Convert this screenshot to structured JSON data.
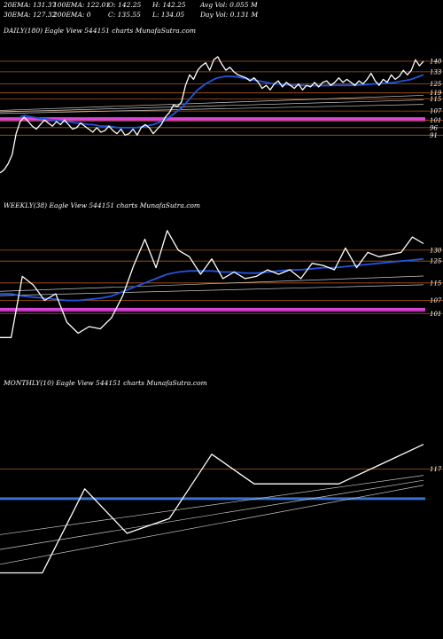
{
  "header": {
    "ema20": "20EMA: 131.37",
    "ema100": "100EMA: 122.01",
    "open": "O: 142.25",
    "high": "H: 142.25",
    "avgvol": "Avg Vol: 0.055 M",
    "ema30": "30EMA: 127.32",
    "ema200": "200EMA: 0",
    "close": "C: 135.55",
    "low": "L: 134.05",
    "dayvol": "Day Vol: 0.131 M"
  },
  "colors": {
    "background": "#000000",
    "price_line": "#ffffff",
    "ema_fast": "#2255dd",
    "level_line": "#b0581a",
    "magenta_band": "#dd44dd",
    "blue_band": "#3b70d0"
  },
  "chart_data": [
    {
      "type": "line",
      "title": "DAILY(180) Eagle   View  544151 charts MunafaSutra.com",
      "price_levels": [
        "140",
        "133",
        "125",
        "119",
        "115",
        "107",
        "101",
        "96",
        "91"
      ],
      "series": [
        {
          "values": [
            66,
            68,
            72,
            78,
            92,
            100,
            103,
            100,
            97,
            95,
            98,
            101,
            99,
            97,
            100,
            98,
            101,
            98,
            95,
            96,
            99,
            97,
            95,
            93,
            96,
            93,
            94,
            97,
            94,
            92,
            95,
            91,
            92,
            95,
            91,
            96,
            98,
            96,
            92,
            95,
            98,
            103,
            106,
            111,
            110,
            113,
            124,
            131,
            128,
            134,
            137,
            139,
            134,
            141,
            143,
            138,
            134,
            136,
            133,
            131,
            130,
            129,
            127,
            129,
            126,
            122,
            124,
            121,
            125,
            127,
            123,
            126,
            124,
            122,
            125,
            121,
            124,
            123,
            126,
            123,
            126,
            127,
            124,
            126,
            129,
            126,
            128,
            126,
            124,
            127,
            125,
            128,
            132,
            127,
            124,
            128,
            126,
            131,
            128,
            130,
            134,
            131,
            134,
            141,
            137,
            140
          ]
        },
        {
          "values": [
            null,
            null,
            null,
            null,
            null,
            103,
            104,
            103.5,
            103,
            102.5,
            102,
            102,
            101.5,
            101,
            101,
            100.5,
            100,
            100,
            99.5,
            99,
            99,
            98.5,
            98,
            98,
            97.5,
            97,
            97,
            97,
            96.5,
            96,
            96,
            96,
            96,
            96,
            96,
            96.5,
            97,
            97.5,
            98,
            99,
            100,
            101.5,
            103,
            105,
            107,
            109,
            112,
            115,
            118,
            121,
            123,
            125,
            126.5,
            128,
            129,
            129.5,
            130,
            130,
            129.8,
            129.5,
            129,
            128.5,
            128,
            127.5,
            127,
            126.5,
            126,
            125.5,
            125,
            125,
            124.5,
            124.5,
            124,
            124,
            124,
            124,
            123.8,
            123.8,
            123.8,
            123.8,
            123.8,
            123.8,
            124,
            124,
            124,
            124,
            124,
            124,
            124,
            124.2,
            124.4,
            124.6,
            124.8,
            125,
            125.2,
            125.4,
            125.6,
            125.8,
            126,
            126.5,
            127,
            127.5,
            128,
            129,
            130,
            131
          ]
        }
      ]
    },
    {
      "type": "line",
      "title": "WEEKLY(38) Eagle   View  544151 charts MunafaSutra.com",
      "price_levels": [
        "130",
        "125",
        "115",
        "107",
        "101"
      ],
      "series": [
        {
          "values": [
            90,
            90,
            118,
            114,
            107,
            110,
            97,
            92,
            95,
            94,
            99,
            109,
            123,
            135,
            122,
            139,
            130,
            127,
            119,
            126,
            117,
            120,
            117,
            118,
            121,
            119,
            121,
            117,
            124,
            123,
            121,
            131,
            122,
            129,
            127,
            128,
            129,
            136,
            133
          ]
        },
        {
          "values": [
            110,
            110,
            109,
            108.5,
            108,
            107.5,
            107,
            107,
            107.5,
            108,
            109,
            111,
            113,
            115,
            117,
            119,
            120,
            120.5,
            120.5,
            120.5,
            120,
            120,
            119.5,
            119.5,
            120,
            120.5,
            121,
            121,
            121.5,
            122,
            122,
            122.5,
            123,
            123.5,
            124,
            124.5,
            125,
            125.5,
            126
          ]
        }
      ]
    },
    {
      "type": "line",
      "title": "MONTHLY(10) Eagle   View  544151 charts MunafaSutra.com",
      "price_levels": [
        "117"
      ],
      "series": [
        {
          "values": [
            96,
            96,
            113,
            104,
            107,
            120,
            114,
            114,
            114,
            118,
            122
          ]
        }
      ]
    }
  ]
}
